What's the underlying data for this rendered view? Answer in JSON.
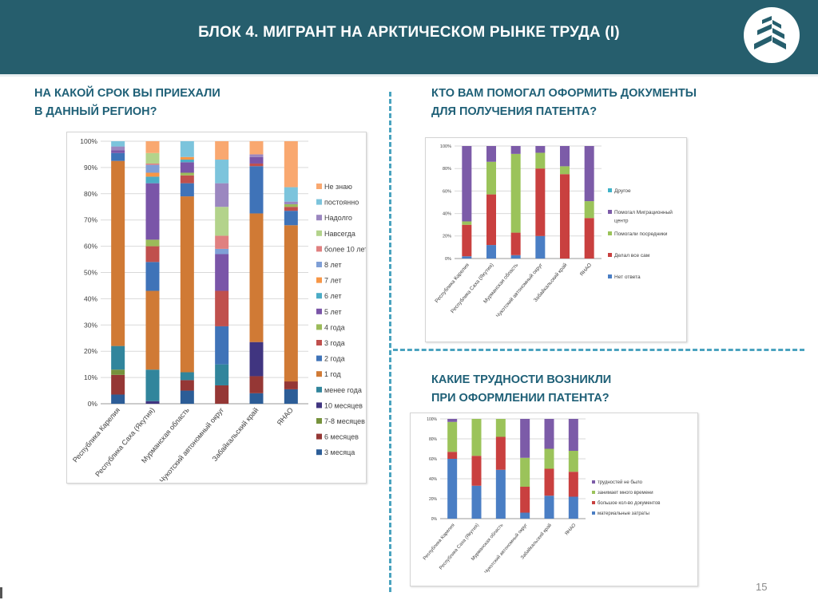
{
  "header": {
    "title": "БЛОК 4. МИГРАНТ НА АРКТИЧЕСКОМ РЫНКЕ ТРУДА (I)"
  },
  "questions": {
    "q1": [
      "НА КАКОЙ СРОК ВЫ ПРИЕХАЛИ",
      "В ДАННЫЙ РЕГИОН?"
    ],
    "q2": [
      "КТО ВАМ ПОМОГАЛ ОФОРМИТЬ ДОКУМЕНТЫ",
      "ДЛЯ ПОЛУЧЕНИЯ ПАТЕНТА?"
    ],
    "q3": [
      "КАКИЕ ТРУДНОСТИ ВОЗНИКЛИ",
      "ПРИ ОФОРМЛЕНИИ ПАТЕНТА?"
    ]
  },
  "page_number": "15",
  "chart_data": [
    {
      "type": "bar",
      "stacked": true,
      "title": "НА КАКОЙ СРОК ВЫ ПРИЕХАЛИ В ДАННЫЙ РЕГИОН?",
      "categories": [
        "Республика Карелия",
        "Республика Саха (Якутия)",
        "Мурманская область",
        "Чукотский автономный округ",
        "Забайкальский край",
        "ЯНАО"
      ],
      "ylim": [
        0,
        100
      ],
      "yticks": [
        "0%",
        "10%",
        "20%",
        "30%",
        "40%",
        "50%",
        "60%",
        "70%",
        "80%",
        "90%",
        "100%"
      ],
      "grid": true,
      "legend": "right",
      "series": [
        {
          "name": "3 месяца",
          "color": "#2c5d97",
          "values": [
            3.5,
            0,
            5,
            0,
            4,
            5.5
          ]
        },
        {
          "name": "6 месяцев",
          "color": "#953735",
          "values": [
            7.5,
            0,
            4,
            7,
            6.5,
            3
          ]
        },
        {
          "name": "7-8 месяцев",
          "color": "#76923c",
          "values": [
            2,
            0,
            0,
            0,
            0,
            0
          ]
        },
        {
          "name": "10 месяцев",
          "color": "#403580",
          "values": [
            0,
            1,
            0,
            0,
            13,
            0
          ]
        },
        {
          "name": "менее года",
          "color": "#31859c",
          "values": [
            9,
            12,
            3,
            8,
            0,
            0
          ]
        },
        {
          "name": "1 год",
          "color": "#d07a35",
          "values": [
            70.5,
            30,
            67,
            0,
            49,
            59.5
          ]
        },
        {
          "name": "2 года",
          "color": "#3f73b8",
          "values": [
            3,
            11,
            5,
            14.5,
            18,
            5.5
          ]
        },
        {
          "name": "3 года",
          "color": "#c0504d",
          "values": [
            0,
            6,
            3,
            13.5,
            1,
            1.5
          ]
        },
        {
          "name": "4 года",
          "color": "#9bbb59",
          "values": [
            0,
            2.5,
            1,
            0,
            0,
            1
          ]
        },
        {
          "name": "5 лет",
          "color": "#7a55a8",
          "values": [
            1,
            21.5,
            4,
            14,
            2.5,
            0
          ]
        },
        {
          "name": "6 лет",
          "color": "#4bacc6",
          "values": [
            0,
            2.5,
            1,
            0,
            0,
            0
          ]
        },
        {
          "name": "7 лет",
          "color": "#f79646",
          "values": [
            0,
            1.5,
            1,
            0,
            0,
            0
          ]
        },
        {
          "name": "8 лет",
          "color": "#7f9fd6",
          "values": [
            0,
            3,
            0,
            2,
            0,
            0
          ]
        },
        {
          "name": "более 10 лет",
          "color": "#e08080",
          "values": [
            0,
            0.5,
            0,
            5,
            0,
            0
          ]
        },
        {
          "name": "Навсегда",
          "color": "#b3d38b",
          "values": [
            0,
            4,
            0,
            11,
            0,
            0
          ]
        },
        {
          "name": "Надолго",
          "color": "#9b87c0",
          "values": [
            1.5,
            0,
            0,
            9,
            1,
            1
          ]
        },
        {
          "name": "постоянно",
          "color": "#7cc4dc",
          "values": [
            2,
            0,
            6,
            9,
            0,
            5.5
          ]
        },
        {
          "name": "Не знаю",
          "color": "#f9a870",
          "values": [
            0,
            4.5,
            0,
            7,
            5,
            17.5
          ]
        }
      ]
    },
    {
      "type": "bar",
      "stacked": true,
      "title": "КТО ВАМ ПОМОГАЛ ОФОРМИТЬ ДОКУМЕНТЫ ДЛЯ ПОЛУЧЕНИЯ ПАТЕНТА?",
      "categories": [
        "Республика Карелия",
        "Республика Саха (Якутия)",
        "Мурманская область",
        "Чукотский автономный округ",
        "Забайкальский край",
        "ЯНАО"
      ],
      "ylim": [
        0,
        100
      ],
      "yticks": [
        "0%",
        "20%",
        "40%",
        "60%",
        "80%",
        "100%"
      ],
      "grid": true,
      "legend": "right",
      "series": [
        {
          "name": "Нет ответа",
          "color": "#4a7ec4",
          "values": [
            2,
            12,
            3,
            20,
            0,
            0
          ]
        },
        {
          "name": "Делал все сам",
          "color": "#c9403f",
          "values": [
            28,
            45,
            20,
            60,
            75,
            36
          ]
        },
        {
          "name": "Помогали посредники",
          "color": "#9bc35a",
          "values": [
            3,
            29,
            70,
            14,
            7,
            15
          ]
        },
        {
          "name": "Помогал Миграционный центр",
          "color": "#7c5ba8",
          "values": [
            67,
            14,
            7,
            6,
            18,
            49
          ]
        },
        {
          "name": "Другое",
          "color": "#3fb2c8",
          "values": [
            0,
            0,
            0,
            0,
            0,
            0
          ]
        }
      ]
    },
    {
      "type": "bar",
      "stacked": true,
      "title": "КАКИЕ ТРУДНОСТИ ВОЗНИКЛИ ПРИ ОФОРМЛЕНИИ ПАТЕНТА?",
      "categories": [
        "Республика Карелия",
        "Республика Саха (Якутия)",
        "Мурманская область",
        "Чукотский автономный округ",
        "Забайкальский край",
        "ЯНАО"
      ],
      "ylim": [
        0,
        100
      ],
      "yticks": [
        "0%",
        "20%",
        "40%",
        "60%",
        "80%",
        "100%"
      ],
      "grid": true,
      "legend": "right",
      "series": [
        {
          "name": "материальные затраты",
          "color": "#4a7ec4",
          "values": [
            60,
            33,
            49,
            6,
            23,
            22
          ]
        },
        {
          "name": "большое кол-во документов",
          "color": "#c9403f",
          "values": [
            7,
            30,
            33,
            26,
            27,
            25
          ]
        },
        {
          "name": "занимает много времени",
          "color": "#9bc35a",
          "values": [
            30,
            37,
            18,
            29,
            20,
            21
          ]
        },
        {
          "name": "трудностей не было",
          "color": "#7c5ba8",
          "values": [
            3,
            0,
            0,
            39,
            30,
            32
          ]
        }
      ]
    }
  ]
}
